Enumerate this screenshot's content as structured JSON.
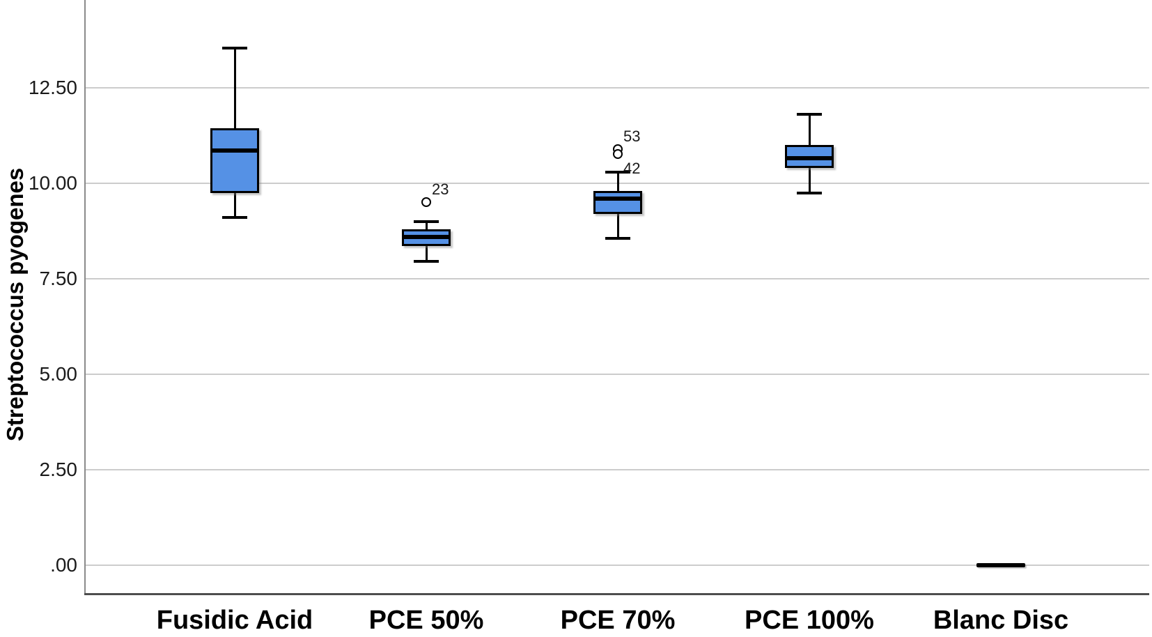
{
  "chart_data": {
    "type": "boxplot",
    "title": "",
    "xlabel": "",
    "ylabel": "Streptococcus pyogenes",
    "categories": [
      "Fusidic Acid",
      "PCE 50%",
      "PCE 70%",
      "PCE 100%",
      "Blanc Disc"
    ],
    "y_ticks": [
      {
        "label": ".00",
        "value": 0
      },
      {
        "label": "2.50",
        "value": 2.5
      },
      {
        "label": "5.00",
        "value": 5
      },
      {
        "label": "7.50",
        "value": 7.5
      },
      {
        "label": "10.00",
        "value": 10
      },
      {
        "label": "12.50",
        "value": 12.5
      }
    ],
    "ylim": [
      -0.74,
      14.8
    ],
    "grid": "horizontal",
    "legend": "none",
    "series": [
      {
        "category": "Fusidic Acid",
        "box": {
          "whisker_low": 9.1,
          "q1": 9.75,
          "median": 10.85,
          "q3": 11.45,
          "whisker_high": 13.55
        },
        "outliers": []
      },
      {
        "category": "PCE 50%",
        "box": {
          "whisker_low": 7.95,
          "q1": 8.35,
          "median": 8.6,
          "q3": 8.8,
          "whisker_high": 9.0
        },
        "outliers": [
          {
            "value": 9.5,
            "case_label": "23",
            "label_side": "above"
          }
        ]
      },
      {
        "category": "PCE 70%",
        "box": {
          "whisker_low": 8.55,
          "q1": 9.2,
          "median": 9.6,
          "q3": 9.8,
          "whisker_high": 10.3
        },
        "outliers": [
          {
            "value": 10.9,
            "case_label": "53",
            "label_side": "above"
          },
          {
            "value": 10.76,
            "case_label": "42",
            "label_side": "below"
          }
        ]
      },
      {
        "category": "PCE 100%",
        "box": {
          "whisker_low": 9.75,
          "q1": 10.4,
          "median": 10.65,
          "q3": 11.0,
          "whisker_high": 11.8
        },
        "outliers": []
      },
      {
        "category": "Blanc Disc",
        "flat_line": 0.0,
        "outliers": []
      }
    ],
    "colors": {
      "box_fill": "#5591E5",
      "box_border": "#000000",
      "median_line": "#000000",
      "whisker": "#000000",
      "gridline": "#cccccc",
      "y_axis_line": "#8a8a8a",
      "x_axis_line": "#4d4d4d",
      "text": "#1a1a1a"
    }
  }
}
